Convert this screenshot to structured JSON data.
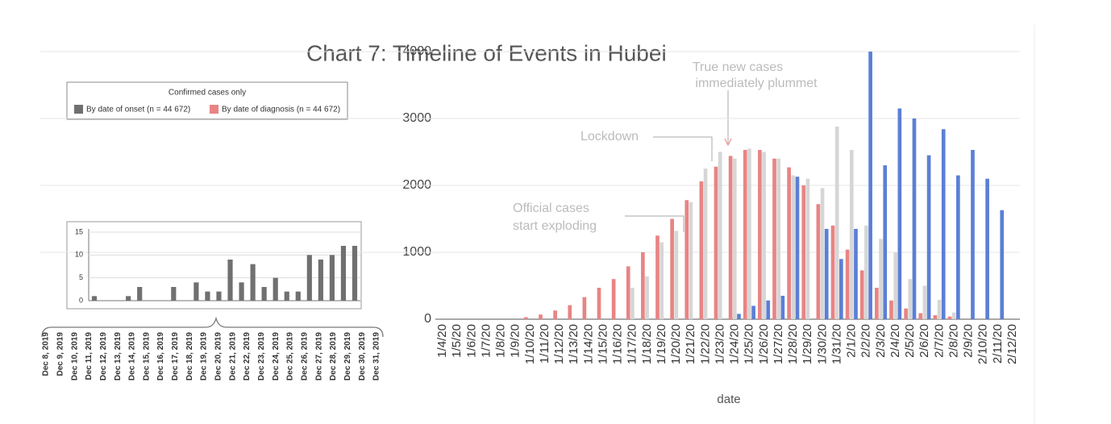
{
  "title": "Chart 7: Timeline of Events in Hubei",
  "annotations": [
    "True new cases",
    "immediately plummet",
    "Lockdown",
    "Official cases",
    "start exploding"
  ],
  "chart_data": [
    {
      "type": "bar",
      "xlabel": "date",
      "categories": [
        "1/4/20",
        "1/5/20",
        "1/6/20",
        "1/7/20",
        "1/8/20",
        "1/9/20",
        "1/10/20",
        "1/11/20",
        "1/12/20",
        "1/13/20",
        "1/14/20",
        "1/15/20",
        "1/16/20",
        "1/17/20",
        "1/18/20",
        "1/19/20",
        "1/20/20",
        "1/21/20",
        "1/22/20",
        "1/23/20",
        "1/24/20",
        "1/25/20",
        "1/26/20",
        "1/27/20",
        "1/28/20",
        "1/29/20",
        "1/30/20",
        "1/31/20",
        "2/1/20",
        "2/2/20",
        "2/3/20",
        "2/4/20",
        "2/5/20",
        "2/6/20",
        "2/7/20",
        "2/8/20",
        "2/9/20",
        "2/10/20",
        "2/11/20",
        "2/12/20"
      ],
      "series": [
        {
          "color": "#e88484",
          "values": [
            0,
            0,
            0,
            0,
            0,
            0,
            30,
            70,
            130,
            210,
            330,
            470,
            600,
            790,
            1000,
            1250,
            1500,
            1780,
            2060,
            2280,
            2440,
            2530,
            2530,
            2400,
            2270,
            2000,
            1720,
            1400,
            1040,
            730,
            470,
            280,
            160,
            90,
            60,
            40,
            0,
            0,
            0,
            0
          ]
        },
        {
          "color": "#d6d6d6",
          "values": [
            0,
            0,
            0,
            0,
            0,
            0,
            0,
            0,
            0,
            0,
            0,
            0,
            0,
            470,
            640,
            1150,
            1320,
            1750,
            2250,
            2500,
            2400,
            2550,
            2500,
            2400,
            2150,
            2100,
            1960,
            2880,
            2530,
            1400,
            1200,
            1000,
            600,
            500,
            290,
            100,
            0,
            0,
            0,
            0
          ]
        },
        {
          "color": "#5b7fd6",
          "values": [
            0,
            0,
            0,
            0,
            0,
            0,
            0,
            0,
            0,
            0,
            0,
            0,
            0,
            0,
            0,
            0,
            0,
            0,
            0,
            0,
            80,
            200,
            280,
            350,
            2130,
            0,
            1350,
            900,
            1350,
            4000,
            2300,
            3150,
            3000,
            2450,
            2840,
            2150,
            2530,
            2100,
            1630,
            0
          ]
        }
      ],
      "ylim": [
        0,
        4000
      ],
      "yticks": [
        0,
        1000,
        2000,
        3000,
        4000
      ],
      "grid": true
    },
    {
      "type": "bar",
      "legend_title": "Confirmed cases only",
      "legend": [
        {
          "label": "By date of onset (n = 44 672)",
          "color": "#707070"
        },
        {
          "label": "By date of diagnosis (n = 44 672)",
          "color": "#e88484"
        }
      ],
      "categories": [
        "Dec 8, 2019",
        "Dec 9, 2019",
        "Dec 10, 2019",
        "Dec 11, 2019",
        "Dec 12, 2019",
        "Dec 13, 2019",
        "Dec 14, 2019",
        "Dec 15, 2019",
        "Dec 16, 2019",
        "Dec 17, 2019",
        "Dec 18, 2019",
        "Dec 19, 2019",
        "Dec 20, 2019",
        "Dec 21, 2019",
        "Dec 22, 2019",
        "Dec 23, 2019",
        "Dec 24, 2019",
        "Dec 25, 2019",
        "Dec 26, 2019",
        "Dec 27, 2019",
        "Dec 28, 2019",
        "Dec 29, 2019",
        "Dec 30, 2019",
        "Dec 31, 2019"
      ],
      "values": [
        1,
        0,
        0,
        1,
        3,
        0,
        0,
        3,
        0,
        4,
        2,
        2,
        9,
        4,
        8,
        3,
        5,
        2,
        2,
        10,
        9,
        10,
        12,
        12
      ],
      "color": "#707070",
      "ylim": [
        0,
        15
      ],
      "yticks": [
        0,
        5,
        10,
        15
      ]
    }
  ]
}
